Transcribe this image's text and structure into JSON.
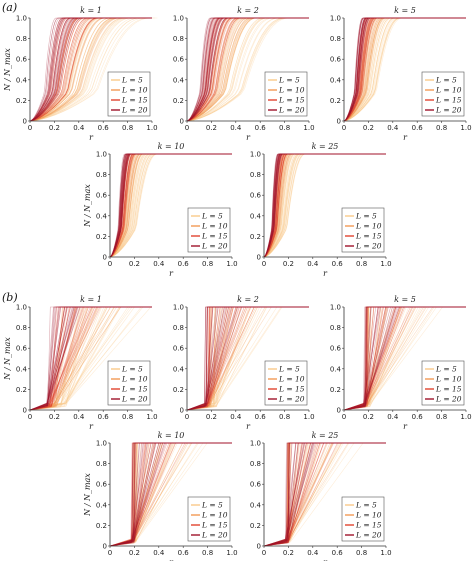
{
  "figure": {
    "part_labels": [
      "(a)",
      "(b)"
    ]
  },
  "legend": {
    "entries": [
      "L = 5",
      "L = 10",
      "L = 15",
      "L = 20"
    ],
    "colors": [
      "#f9c98a",
      "#f29a55",
      "#e0442f",
      "#a0142a"
    ]
  },
  "chart_data": [
    {
      "part": "(a)",
      "type": "line",
      "title": "k = 1",
      "xlabel": "r",
      "ylabel": "N / N_max",
      "xlim": [
        0,
        1
      ],
      "ylim": [
        0,
        1
      ],
      "xticks": [
        0,
        0.2,
        0.4,
        0.6,
        0.8,
        1.0
      ],
      "yticks": [
        0,
        0.2,
        0.4,
        0.6,
        0.8,
        1.0
      ],
      "series": [
        {
          "name": "L = 5",
          "ranges": [
            0.5,
            1.0
          ]
        },
        {
          "name": "L = 10",
          "ranges": [
            0.35,
            0.8
          ]
        },
        {
          "name": "L = 15",
          "ranges": [
            0.25,
            0.6
          ]
        },
        {
          "name": "L = 20",
          "ranges": [
            0.2,
            0.45
          ]
        }
      ]
    },
    {
      "part": "(a)",
      "type": "line",
      "title": "k = 2",
      "xlabel": "r",
      "ylabel": "N / N_max",
      "xlim": [
        0,
        1
      ],
      "ylim": [
        0,
        1
      ],
      "xticks": [
        0,
        0.2,
        0.4,
        0.6,
        0.8,
        1.0
      ],
      "yticks": [
        0,
        0.2,
        0.4,
        0.6,
        0.8,
        1.0
      ],
      "series": [
        {
          "name": "L = 5",
          "ranges": [
            0.4,
            0.9
          ]
        },
        {
          "name": "L = 10",
          "ranges": [
            0.3,
            0.6
          ]
        },
        {
          "name": "L = 15",
          "ranges": [
            0.22,
            0.45
          ]
        },
        {
          "name": "L = 20",
          "ranges": [
            0.18,
            0.35
          ]
        }
      ]
    },
    {
      "part": "(a)",
      "type": "line",
      "title": "k = 5",
      "xlabel": "r",
      "ylabel": "N / N_max",
      "xlim": [
        0,
        1
      ],
      "ylim": [
        0,
        1
      ],
      "xticks": [
        0,
        0.2,
        0.4,
        0.6,
        0.8,
        1.0
      ],
      "yticks": [
        0,
        0.2,
        0.4,
        0.6,
        0.8,
        1.0
      ],
      "series": [
        {
          "name": "L = 5",
          "ranges": [
            0.3,
            0.5
          ]
        },
        {
          "name": "L = 10",
          "ranges": [
            0.22,
            0.35
          ]
        },
        {
          "name": "L = 15",
          "ranges": [
            0.18,
            0.28
          ]
        },
        {
          "name": "L = 20",
          "ranges": [
            0.15,
            0.22
          ]
        }
      ]
    },
    {
      "part": "(a)",
      "type": "line",
      "title": "k = 10",
      "xlabel": "r",
      "ylabel": "N / N_max",
      "xlim": [
        0,
        1
      ],
      "ylim": [
        0,
        1
      ],
      "xticks": [
        0,
        0.2,
        0.4,
        0.6,
        0.8,
        1.0
      ],
      "yticks": [
        0,
        0.2,
        0.4,
        0.6,
        0.8,
        1.0
      ],
      "series": [
        {
          "name": "L = 5",
          "ranges": [
            0.25,
            0.4
          ]
        },
        {
          "name": "L = 10",
          "ranges": [
            0.18,
            0.28
          ]
        },
        {
          "name": "L = 15",
          "ranges": [
            0.14,
            0.22
          ]
        },
        {
          "name": "L = 20",
          "ranges": [
            0.12,
            0.18
          ]
        }
      ]
    },
    {
      "part": "(a)",
      "type": "line",
      "title": "k = 25",
      "xlabel": "r",
      "ylabel": "N / N_max",
      "xlim": [
        0,
        1
      ],
      "ylim": [
        0,
        1
      ],
      "xticks": [
        0,
        0.2,
        0.4,
        0.6,
        0.8,
        1.0
      ],
      "yticks": [
        0,
        0.2,
        0.4,
        0.6,
        0.8,
        1.0
      ],
      "series": [
        {
          "name": "L = 5",
          "ranges": [
            0.22,
            0.35
          ]
        },
        {
          "name": "L = 10",
          "ranges": [
            0.16,
            0.24
          ]
        },
        {
          "name": "L = 15",
          "ranges": [
            0.13,
            0.2
          ]
        },
        {
          "name": "L = 20",
          "ranges": [
            0.11,
            0.16
          ]
        }
      ]
    },
    {
      "part": "(b)",
      "type": "line",
      "title": "k = 1",
      "xlabel": "r",
      "ylabel": "N / N_max",
      "xlim": [
        0,
        1
      ],
      "ylim": [
        0,
        1
      ],
      "xticks": [
        0,
        0.2,
        0.4,
        0.6,
        0.8,
        1.0
      ],
      "yticks": [
        0,
        0.2,
        0.4,
        0.6,
        0.8,
        1.0
      ],
      "series": [
        {
          "name": "L = 5",
          "ranges": [
            0.3,
            1.0
          ]
        },
        {
          "name": "L = 10",
          "ranges": [
            0.22,
            0.8
          ]
        },
        {
          "name": "L = 15",
          "ranges": [
            0.18,
            0.6
          ]
        },
        {
          "name": "L = 20",
          "ranges": [
            0.15,
            0.45
          ]
        }
      ]
    },
    {
      "part": "(b)",
      "type": "line",
      "title": "k = 2",
      "xlabel": "r",
      "ylabel": "N / N_max",
      "xlim": [
        0,
        1
      ],
      "ylim": [
        0,
        1
      ],
      "xticks": [
        0,
        0.2,
        0.4,
        0.6,
        0.8,
        1.0
      ],
      "yticks": [
        0,
        0.2,
        0.4,
        0.6,
        0.8,
        1.0
      ],
      "series": [
        {
          "name": "L = 5",
          "ranges": [
            0.25,
            1.0
          ]
        },
        {
          "name": "L = 10",
          "ranges": [
            0.2,
            0.85
          ]
        },
        {
          "name": "L = 15",
          "ranges": [
            0.18,
            0.7
          ]
        },
        {
          "name": "L = 20",
          "ranges": [
            0.16,
            0.55
          ]
        }
      ]
    },
    {
      "part": "(b)",
      "type": "line",
      "title": "k = 5",
      "xlabel": "r",
      "ylabel": "N / N_max",
      "xlim": [
        0,
        1
      ],
      "ylim": [
        0,
        1
      ],
      "xticks": [
        0,
        0.2,
        0.4,
        0.6,
        0.8,
        1.0
      ],
      "yticks": [
        0,
        0.2,
        0.4,
        0.6,
        0.8,
        1.0
      ],
      "series": [
        {
          "name": "L = 5",
          "ranges": [
            0.22,
            1.0
          ]
        },
        {
          "name": "L = 10",
          "ranges": [
            0.2,
            0.9
          ]
        },
        {
          "name": "L = 15",
          "ranges": [
            0.19,
            0.75
          ]
        },
        {
          "name": "L = 20",
          "ranges": [
            0.18,
            0.6
          ]
        }
      ]
    },
    {
      "part": "(b)",
      "type": "line",
      "title": "k = 10",
      "xlabel": "r",
      "ylabel": "N / N_max",
      "xlim": [
        0,
        1
      ],
      "ylim": [
        0,
        1
      ],
      "xticks": [
        0,
        0.2,
        0.4,
        0.6,
        0.8,
        1.0
      ],
      "yticks": [
        0,
        0.2,
        0.4,
        0.6,
        0.8,
        1.0
      ],
      "series": [
        {
          "name": "L = 5",
          "ranges": [
            0.22,
            1.0
          ]
        },
        {
          "name": "L = 10",
          "ranges": [
            0.21,
            0.9
          ]
        },
        {
          "name": "L = 15",
          "ranges": [
            0.2,
            0.75
          ]
        },
        {
          "name": "L = 20",
          "ranges": [
            0.2,
            0.55
          ]
        }
      ]
    },
    {
      "part": "(b)",
      "type": "line",
      "title": "k = 25",
      "xlabel": "r",
      "ylabel": "N / N_max",
      "xlim": [
        0,
        1
      ],
      "ylim": [
        0,
        1
      ],
      "xticks": [
        0,
        0.2,
        0.4,
        0.6,
        0.8,
        1.0
      ],
      "yticks": [
        0,
        0.2,
        0.4,
        0.6,
        0.8,
        1.0
      ],
      "series": [
        {
          "name": "L = 5",
          "ranges": [
            0.22,
            1.0
          ]
        },
        {
          "name": "L = 10",
          "ranges": [
            0.21,
            0.9
          ]
        },
        {
          "name": "L = 15",
          "ranges": [
            0.21,
            0.75
          ]
        },
        {
          "name": "L = 20",
          "ranges": [
            0.2,
            0.55
          ]
        }
      ]
    }
  ]
}
